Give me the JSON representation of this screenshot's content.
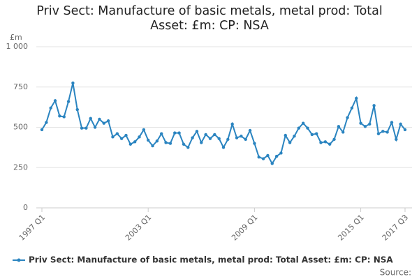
{
  "chart_data": {
    "type": "line",
    "title": "Priv Sect: Manufacture of basic metals, metal prod: Total Asset: £m: CP: NSA",
    "y_label": "£m",
    "source": "Source:",
    "categories": [
      "1997 Q1",
      null,
      null,
      null,
      null,
      null,
      null,
      null,
      null,
      null,
      null,
      null,
      null,
      null,
      null,
      null,
      null,
      null,
      null,
      null,
      null,
      null,
      null,
      null,
      "2003 Q1",
      null,
      null,
      null,
      null,
      null,
      null,
      null,
      null,
      null,
      null,
      null,
      null,
      null,
      null,
      null,
      null,
      null,
      null,
      null,
      null,
      null,
      null,
      null,
      "2009 Q1",
      null,
      null,
      null,
      null,
      null,
      null,
      null,
      null,
      null,
      null,
      null,
      null,
      null,
      null,
      null,
      null,
      null,
      null,
      null,
      null,
      null,
      null,
      null,
      "2015 Q1",
      null,
      null,
      null,
      null,
      null,
      null,
      null,
      null,
      null,
      "2017 Q3"
    ],
    "series": [
      {
        "name": "Priv Sect: Manufacture of basic metals, metal prod: Total Asset: £m: CP: NSA",
        "color": "#2a84c0",
        "values": [
          485,
          530,
          620,
          665,
          570,
          565,
          660,
          775,
          610,
          495,
          495,
          555,
          500,
          550,
          525,
          540,
          440,
          460,
          430,
          450,
          395,
          410,
          440,
          485,
          420,
          385,
          415,
          460,
          405,
          400,
          465,
          465,
          395,
          375,
          435,
          475,
          405,
          455,
          430,
          455,
          430,
          375,
          425,
          520,
          435,
          445,
          425,
          480,
          400,
          315,
          305,
          325,
          275,
          320,
          340,
          450,
          405,
          445,
          495,
          525,
          495,
          455,
          460,
          405,
          410,
          395,
          425,
          505,
          470,
          560,
          620,
          680,
          525,
          505,
          520,
          635,
          460,
          475,
          470,
          530,
          425,
          520,
          485
        ]
      }
    ],
    "ylim": [
      0,
      1000
    ],
    "yticks": [
      0,
      250,
      500,
      750,
      {
        "value": 1000,
        "label": "1 000"
      }
    ],
    "grid": true
  }
}
